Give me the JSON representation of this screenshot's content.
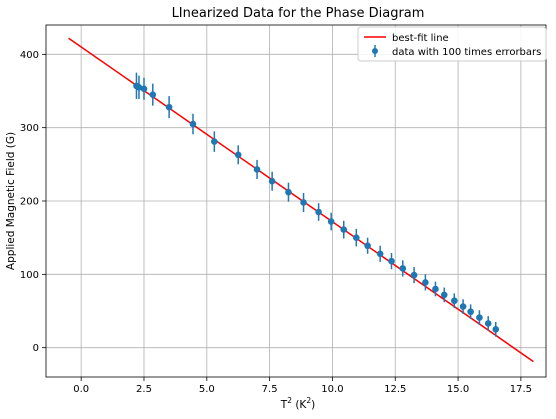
{
  "chart_data": {
    "type": "scatter",
    "title": "LInearized Data for the Phase Diagram",
    "xlabel": "T² (K²)",
    "xlabel_parts": {
      "prefix": "T",
      "sup": "2",
      "mid": " (K",
      "sup2": "2",
      "suffix": ")"
    },
    "ylabel": "Applied Magnetic Field (G)",
    "xlim": [
      -1.4,
      18.5
    ],
    "ylim": [
      -40,
      440
    ],
    "xticks": [
      0.0,
      2.5,
      5.0,
      7.5,
      10.0,
      12.5,
      15.0,
      17.5
    ],
    "xtick_labels": [
      "0.0",
      "2.5",
      "5.0",
      "7.5",
      "10.0",
      "12.5",
      "15.0",
      "17.5"
    ],
    "yticks": [
      0,
      100,
      200,
      300,
      400
    ],
    "ytick_labels": [
      "0",
      "100",
      "200",
      "300",
      "400"
    ],
    "grid": true,
    "legend_position": "top-right",
    "colors": {
      "fit": "#ff0000",
      "data": "#1f77b4",
      "axes": "#000000",
      "grid": "#b0b0b0"
    },
    "series": [
      {
        "name": "best-fit line",
        "kind": "line",
        "x": [
          -0.5,
          18.0
        ],
        "y": [
          422,
          -19
        ]
      },
      {
        "name": "data with 100 times errorbars",
        "kind": "errorbar",
        "x": [
          2.2,
          2.3,
          2.5,
          2.85,
          3.5,
          4.45,
          5.3,
          6.25,
          7.0,
          7.6,
          8.25,
          8.85,
          9.45,
          9.95,
          10.45,
          10.95,
          11.4,
          11.9,
          12.35,
          12.8,
          13.25,
          13.7,
          14.1,
          14.45,
          14.85,
          15.2,
          15.5,
          15.85,
          16.2,
          16.5
        ],
        "y": [
          357,
          355,
          353,
          345,
          328,
          305,
          281,
          263,
          243,
          227,
          212,
          198,
          185,
          172,
          161,
          150,
          139,
          128,
          118,
          108,
          99,
          89,
          80,
          72,
          64,
          56,
          49,
          41,
          33,
          25
        ],
        "yerr": [
          18,
          16,
          15,
          15,
          15,
          14,
          14,
          13,
          13,
          13,
          13,
          13,
          12,
          12,
          12,
          12,
          11,
          11,
          11,
          11,
          11,
          11,
          10,
          10,
          10,
          10,
          10,
          10,
          10,
          10
        ]
      }
    ]
  }
}
